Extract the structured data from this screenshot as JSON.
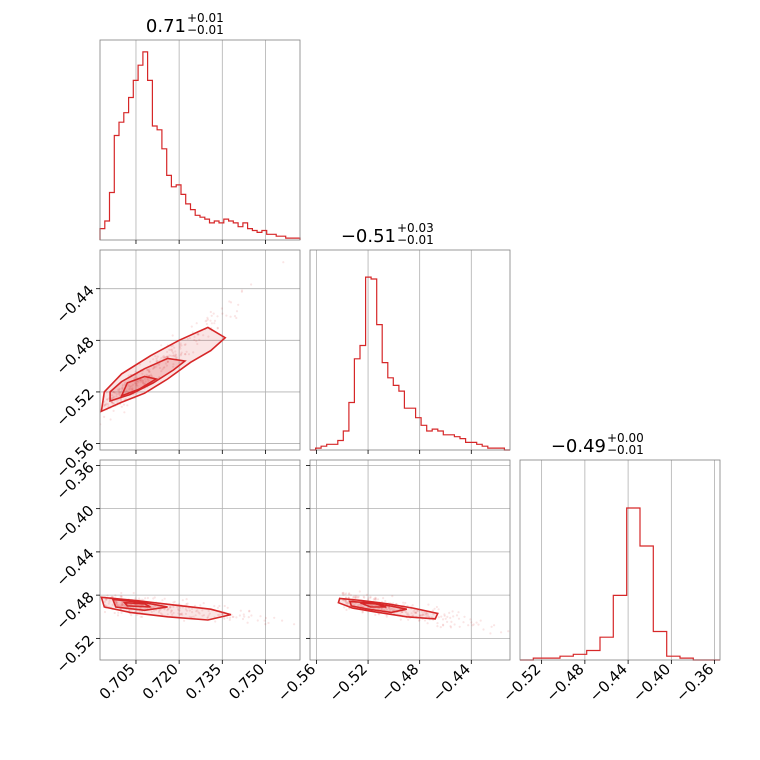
{
  "chart_data": {
    "type": "corner",
    "color": "#d62728",
    "grid": true,
    "parameters": [
      {
        "title_value": "0.71",
        "title_plus": "+0.01",
        "title_minus": "−0.01",
        "range": [
          0.6925,
          0.762
        ],
        "ticks": [
          0.705,
          0.72,
          0.735,
          0.75
        ],
        "tick_labels": [
          "0.705",
          "0.720",
          "0.735",
          "0.750"
        ],
        "histogram": [
          0.06,
          0.1,
          0.25,
          0.55,
          0.62,
          0.67,
          0.75,
          0.84,
          0.92,
          0.99,
          0.84,
          0.6,
          0.58,
          0.48,
          0.34,
          0.28,
          0.29,
          0.24,
          0.19,
          0.16,
          0.13,
          0.12,
          0.11,
          0.09,
          0.1,
          0.09,
          0.11,
          0.1,
          0.09,
          0.07,
          0.09,
          0.06,
          0.05,
          0.04,
          0.05,
          0.03,
          0.03,
          0.02,
          0.02,
          0.01,
          0.01,
          0.01
        ]
      },
      {
        "title_value": "−0.51",
        "title_plus": "+0.03",
        "title_minus": "−0.01",
        "range": [
          -0.565,
          -0.41
        ],
        "ticks": [
          -0.56,
          -0.52,
          -0.48,
          -0.44
        ],
        "tick_labels": [
          "−0.56",
          "−0.52",
          "−0.48",
          "−0.44"
        ],
        "histogram": [
          0.0,
          0.01,
          0.02,
          0.03,
          0.03,
          0.05,
          0.1,
          0.25,
          0.48,
          0.55,
          0.91,
          0.9,
          0.66,
          0.46,
          0.38,
          0.34,
          0.31,
          0.22,
          0.22,
          0.17,
          0.13,
          0.1,
          0.11,
          0.1,
          0.08,
          0.08,
          0.07,
          0.06,
          0.04,
          0.04,
          0.03,
          0.02,
          0.01,
          0.01,
          0.01,
          0.0
        ]
      },
      {
        "title_value": "−0.49",
        "title_plus": "+0.00",
        "title_minus": "−0.01",
        "range": [
          -0.54,
          -0.355
        ],
        "ticks": [
          -0.52,
          -0.48,
          -0.44,
          -0.4,
          -0.36
        ],
        "tick_labels": [
          "−0.52",
          "−0.48",
          "−0.44",
          "−0.40",
          "−0.36"
        ],
        "histogram": [
          0.0,
          0.01,
          0.01,
          0.02,
          0.03,
          0.05,
          0.12,
          0.34,
          0.8,
          0.6,
          0.15,
          0.02,
          0.01,
          0.0,
          0.0
        ]
      }
    ],
    "pairs": {
      "p1_vs_p0": {
        "x_center": 0.706,
        "y_center": -0.516,
        "contours": [
          [
            [
              0.693,
              -0.535
            ],
            [
              0.7,
              -0.528
            ],
            [
              0.708,
              -0.521
            ],
            [
              0.716,
              -0.51
            ],
            [
              0.724,
              -0.497
            ],
            [
              0.731,
              -0.488
            ],
            [
              0.736,
              -0.478
            ],
            [
              0.73,
              -0.47
            ],
            [
              0.72,
              -0.48
            ],
            [
              0.71,
              -0.492
            ],
            [
              0.7,
              -0.506
            ],
            [
              0.694,
              -0.52
            ]
          ],
          [
            [
              0.696,
              -0.527
            ],
            [
              0.703,
              -0.522
            ],
            [
              0.711,
              -0.513
            ],
            [
              0.718,
              -0.503
            ],
            [
              0.722,
              -0.496
            ],
            [
              0.716,
              -0.494
            ],
            [
              0.708,
              -0.502
            ],
            [
              0.7,
              -0.512
            ],
            [
              0.696,
              -0.52
            ]
          ],
          [
            [
              0.7,
              -0.523
            ],
            [
              0.706,
              -0.518
            ],
            [
              0.712,
              -0.51
            ],
            [
              0.708,
              -0.508
            ],
            [
              0.702,
              -0.513
            ]
          ]
        ]
      },
      "p2_vs_p0": {
        "x_center": 0.708,
        "y_center": -0.489,
        "contours": [
          [
            [
              0.693,
              -0.482
            ],
            [
              0.705,
              -0.485
            ],
            [
              0.718,
              -0.489
            ],
            [
              0.731,
              -0.493
            ],
            [
              0.738,
              -0.498
            ],
            [
              0.73,
              -0.503
            ],
            [
              0.716,
              -0.5
            ],
            [
              0.703,
              -0.496
            ],
            [
              0.694,
              -0.491
            ]
          ],
          [
            [
              0.697,
              -0.484
            ],
            [
              0.708,
              -0.487
            ],
            [
              0.716,
              -0.491
            ],
            [
              0.708,
              -0.494
            ],
            [
              0.698,
              -0.491
            ]
          ],
          [
            [
              0.701,
              -0.487
            ],
            [
              0.708,
              -0.488
            ],
            [
              0.71,
              -0.491
            ],
            [
              0.702,
              -0.49
            ]
          ]
        ]
      },
      "p2_vs_p1": {
        "x_center": -0.511,
        "y_center": -0.489,
        "contours": [
          [
            [
              -0.542,
              -0.483
            ],
            [
              -0.525,
              -0.485
            ],
            [
              -0.505,
              -0.488
            ],
            [
              -0.485,
              -0.492
            ],
            [
              -0.466,
              -0.497
            ],
            [
              -0.468,
              -0.502
            ],
            [
              -0.49,
              -0.5
            ],
            [
              -0.512,
              -0.496
            ],
            [
              -0.532,
              -0.492
            ],
            [
              -0.543,
              -0.487
            ]
          ],
          [
            [
              -0.534,
              -0.486
            ],
            [
              -0.518,
              -0.487
            ],
            [
              -0.503,
              -0.49
            ],
            [
              -0.49,
              -0.493
            ],
            [
              -0.502,
              -0.496
            ],
            [
              -0.52,
              -0.493
            ],
            [
              -0.533,
              -0.49
            ]
          ],
          [
            [
              -0.526,
              -0.487
            ],
            [
              -0.514,
              -0.488
            ],
            [
              -0.506,
              -0.491
            ],
            [
              -0.518,
              -0.491
            ]
          ]
        ]
      }
    }
  }
}
